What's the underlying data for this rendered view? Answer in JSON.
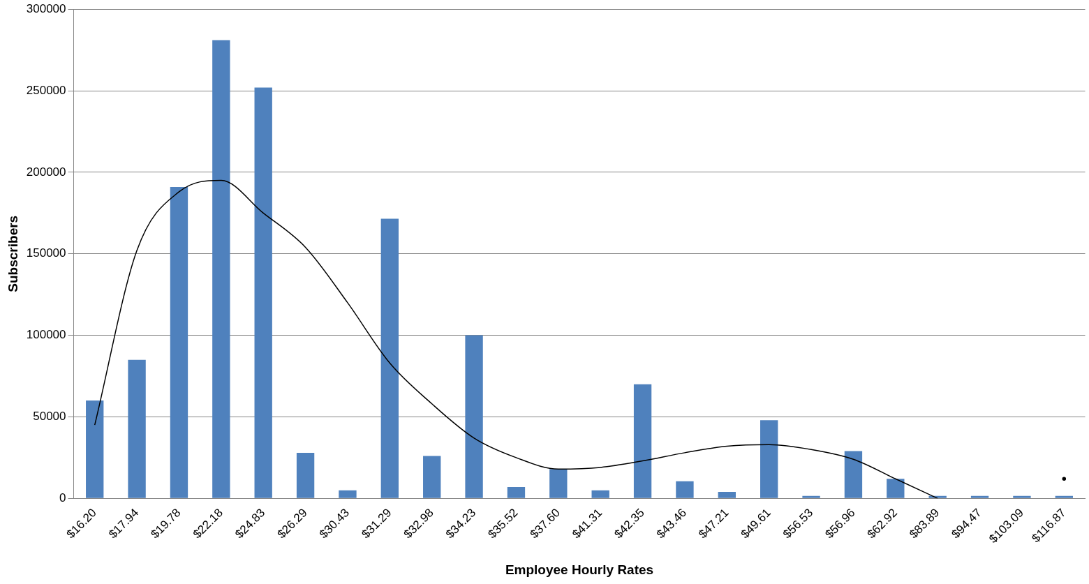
{
  "chart_data": {
    "type": "bar",
    "xlabel": "Employee Hourly Rates",
    "ylabel": "Subscribers",
    "categories": [
      "$16.20",
      "$17.94",
      "$19.78",
      "$22.18",
      "$24.83",
      "$26.29",
      "$30.43",
      "$31.29",
      "$32.98",
      "$34.23",
      "$35.52",
      "$37.60",
      "$41.31",
      "$42.35",
      "$43.46",
      "$47.21",
      "$49.61",
      "$56.53",
      "$56.96",
      "$62.92",
      "$83.89",
      "$94.47",
      "$103.09",
      "$116.87"
    ],
    "series": [
      {
        "color": "#4f81bd",
        "values": [
          60000,
          85000,
          191000,
          281000,
          252000,
          28000,
          5000,
          171500,
          26000,
          100000,
          7000,
          18000,
          5000,
          70000,
          10500,
          4000,
          48000,
          1500,
          29000,
          12000,
          1500,
          1500,
          1500,
          1500
        ]
      },
      {
        "type": "line",
        "color": "#000000",
        "values": [
          45000,
          152000,
          188000,
          195000,
          175000,
          154000,
          120000,
          83000,
          58000,
          37000,
          25000,
          18000,
          19000,
          23000,
          28000,
          32000,
          33000,
          30000,
          24000,
          12000,
          0,
          null,
          null,
          12000
        ]
      }
    ],
    "ylim": [
      0,
      300000
    ],
    "yticks": [
      0,
      50000,
      100000,
      150000,
      200000,
      250000,
      300000
    ],
    "grid": "y",
    "marker": "none"
  }
}
